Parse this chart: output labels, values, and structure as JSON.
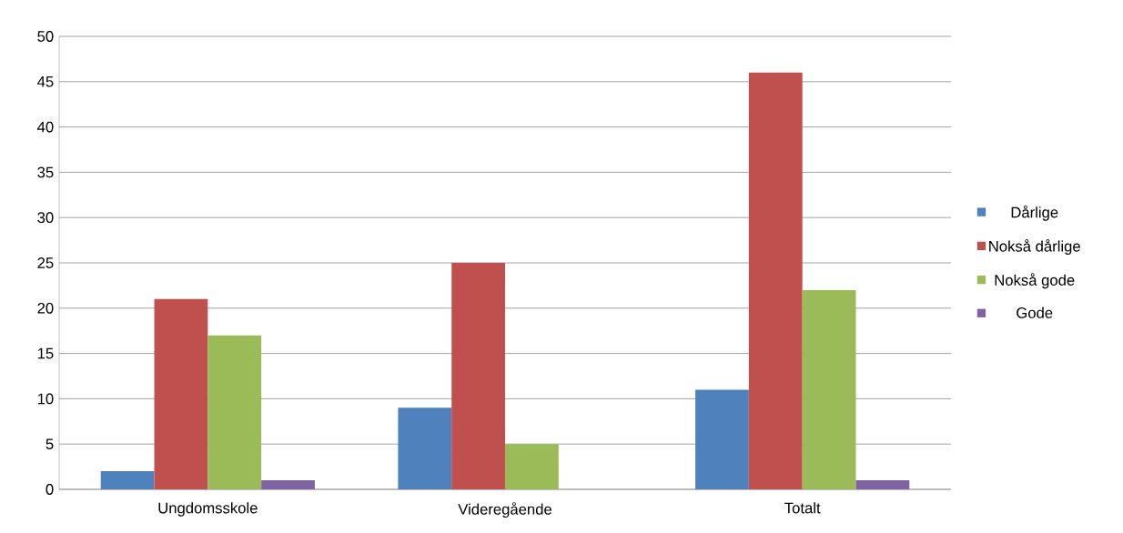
{
  "chart_data": {
    "type": "bar",
    "categories": [
      "Ungdomsskole",
      "Videregående",
      "Totalt"
    ],
    "series": [
      {
        "name": "Dårlige",
        "color": "#4f81bd",
        "values": [
          2,
          9,
          11
        ]
      },
      {
        "name": "Nokså dårlige",
        "color": "#c0504d",
        "values": [
          21,
          25,
          46
        ]
      },
      {
        "name": "Nokså gode",
        "color": "#9bbb59",
        "values": [
          17,
          5,
          22
        ]
      },
      {
        "name": "Gode",
        "color": "#8064a2",
        "values": [
          1,
          0,
          1
        ]
      }
    ],
    "ylim": [
      0,
      50
    ],
    "yticks": [
      0,
      5,
      10,
      15,
      20,
      25,
      30,
      35,
      40,
      45,
      50
    ],
    "grid": "y",
    "legend": "right"
  }
}
